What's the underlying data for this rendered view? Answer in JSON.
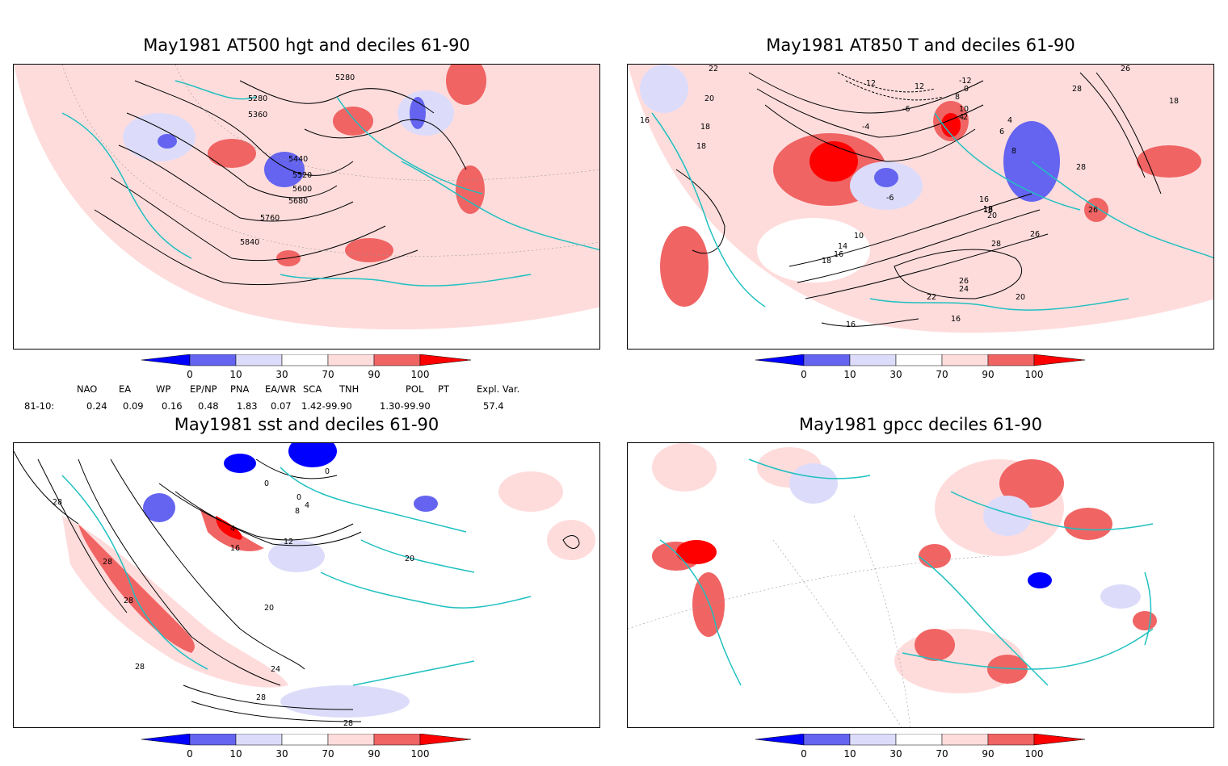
{
  "titles": {
    "p1": "May1981 AT500 hgt and deciles 61-90",
    "p2": "May1981 AT850 T and deciles 61-90",
    "p3": "May1981 sst and deciles 61-90",
    "p4": "May1981 gpcc deciles 61-90"
  },
  "colorbar": {
    "ticks": [
      "0",
      "10",
      "30",
      "70",
      "90",
      "100"
    ],
    "colors": [
      "#0000ff",
      "#6464f0",
      "#dcdcfa",
      "#ffffff",
      "#ffdcdc",
      "#f06464",
      "#ff0000"
    ]
  },
  "indices": {
    "headers": [
      "NAO",
      "EA",
      "WP",
      "EP/NP",
      "PNA",
      "EA/WR",
      "SCA",
      "TNH",
      "POL",
      "PT",
      "Expl. Var."
    ],
    "row_label": "81-10:",
    "values": [
      "0.24",
      "0.09",
      "0.16",
      "0.48",
      "1.83",
      "0.07",
      "1.42-99.90",
      "1.30-99.90",
      "57.4"
    ]
  },
  "contour_labels": {
    "p1": [
      "5280",
      "5280",
      "5360",
      "5440",
      "5520",
      "5600",
      "5680",
      "5760",
      "5840"
    ],
    "p2": [
      "22",
      "20",
      "16",
      "18",
      "18",
      "12",
      "12",
      "-12",
      "0",
      "8",
      "10",
      "-6",
      "4",
      "-4",
      "2",
      "4",
      "6",
      "8",
      "-6",
      "16",
      "18",
      "20",
      "10",
      "14",
      "16",
      "18",
      "28",
      "26",
      "24",
      "22",
      "20",
      "16",
      "18",
      "26",
      "28",
      "26",
      "28",
      "26",
      "18",
      "16"
    ],
    "p3": [
      "28",
      "28",
      "28",
      "0",
      "0",
      "0",
      "4",
      "8",
      "4",
      "12",
      "16",
      "20",
      "20",
      "24",
      "28",
      "28",
      "28"
    ]
  }
}
